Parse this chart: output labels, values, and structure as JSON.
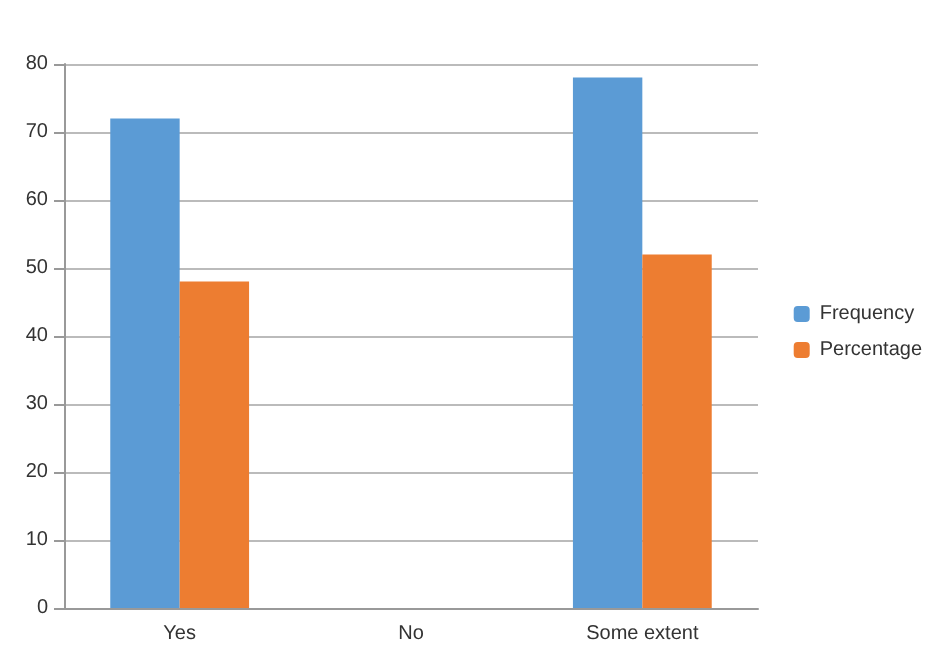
{
  "chart_data": {
    "type": "bar",
    "categories": [
      "Yes",
      "No",
      "Some extent"
    ],
    "series": [
      {
        "name": "Frequency",
        "color": "#5b9bd5",
        "values": [
          72,
          0,
          78
        ]
      },
      {
        "name": "Percentage",
        "color": "#ed7d31",
        "values": [
          48,
          0,
          52
        ]
      }
    ],
    "ylim": [
      0,
      80
    ],
    "yticks": [
      0,
      10,
      20,
      30,
      40,
      50,
      60,
      70,
      80
    ],
    "grid": "y",
    "legend": "right"
  }
}
